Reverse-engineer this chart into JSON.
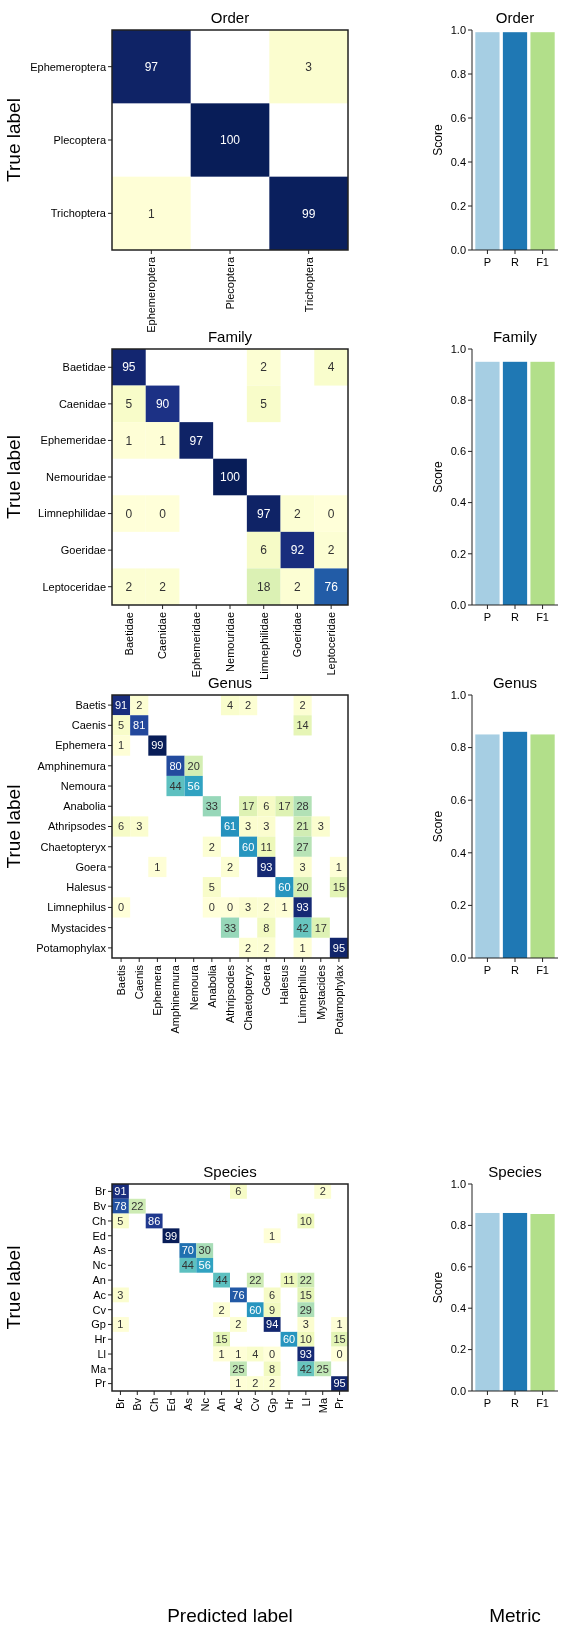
{
  "chart_data": [
    {
      "type": "heatmap",
      "title": "Order",
      "ylabel": "True label",
      "categories": [
        "Ephemeroptera",
        "Plecoptera",
        "Trichoptera"
      ],
      "y_categories": [
        "Ephemeroptera",
        "Plecoptera",
        "Trichoptera"
      ],
      "data_labels": true,
      "cells": [
        [
          97,
          null,
          3
        ],
        [
          null,
          100,
          null
        ],
        [
          1,
          null,
          99
        ]
      ]
    },
    {
      "type": "bar",
      "title": "Order",
      "ylabel": "Score",
      "categories": [
        "P",
        "R",
        "F1"
      ],
      "values": [
        0.99,
        0.99,
        0.99
      ],
      "colors": [
        "#a6cee3",
        "#1f78b4",
        "#b2df8a"
      ],
      "ylim": [
        0,
        1
      ],
      "yticks": [
        {
          "value": 0,
          "label": "0.0"
        },
        {
          "value": 0.2,
          "label": "0.2"
        },
        {
          "value": 0.4,
          "label": "0.4"
        },
        {
          "value": 0.6,
          "label": "0.6"
        },
        {
          "value": 0.8,
          "label": "0.8"
        },
        {
          "value": 1,
          "label": "1.0"
        }
      ]
    },
    {
      "type": "heatmap",
      "title": "Family",
      "ylabel": "True label",
      "categories": [
        "Baetidae",
        "Caenidae",
        "Ephemeridae",
        "Nemouridae",
        "Limnephilidae",
        "Goeridae",
        "Leptoceridae"
      ],
      "y_categories": [
        "Baetidae",
        "Caenidae",
        "Ephemeridae",
        "Nemouridae",
        "Limnephilidae",
        "Goeridae",
        "Leptoceridae"
      ],
      "data_labels": true,
      "cells": [
        [
          95,
          null,
          null,
          null,
          2,
          null,
          4
        ],
        [
          5,
          90,
          null,
          null,
          5,
          null,
          null
        ],
        [
          1,
          1,
          97,
          null,
          null,
          null,
          null
        ],
        [
          null,
          null,
          null,
          100,
          null,
          null,
          null
        ],
        [
          0,
          0,
          null,
          null,
          97,
          2,
          0
        ],
        [
          null,
          null,
          null,
          null,
          6,
          92,
          2
        ],
        [
          2,
          2,
          null,
          null,
          18,
          2,
          76
        ]
      ]
    },
    {
      "type": "bar",
      "title": "Family",
      "ylabel": "Score",
      "categories": [
        "P",
        "R",
        "F1"
      ],
      "values": [
        0.95,
        0.95,
        0.95
      ],
      "colors": [
        "#a6cee3",
        "#1f78b4",
        "#b2df8a"
      ],
      "ylim": [
        0,
        1
      ],
      "yticks": [
        {
          "value": 0,
          "label": "0.0"
        },
        {
          "value": 0.2,
          "label": "0.2"
        },
        {
          "value": 0.4,
          "label": "0.4"
        },
        {
          "value": 0.6,
          "label": "0.6"
        },
        {
          "value": 0.8,
          "label": "0.8"
        },
        {
          "value": 1,
          "label": "1.0"
        }
      ]
    },
    {
      "type": "heatmap",
      "title": "Genus",
      "ylabel": "True label",
      "categories": [
        "Baetis",
        "Caenis",
        "Ephemera",
        "Amphinemura",
        "Nemoura",
        "Anabolia",
        "Athripsodes",
        "Chaetopteryx",
        "Goera",
        "Halesus",
        "Limnephilus",
        "Mystacides",
        "Potamophylax"
      ],
      "y_categories": [
        "Baetis",
        "Caenis",
        "Ephemera",
        "Amphinemura",
        "Nemoura",
        "Anabolia",
        "Athripsodes",
        "Chaetopteryx",
        "Goera",
        "Halesus",
        "Limnephilus",
        "Mystacides",
        "Potamophylax"
      ],
      "data_labels": true,
      "cells": [
        [
          91,
          2,
          null,
          null,
          null,
          null,
          4,
          2,
          null,
          null,
          2,
          null,
          null
        ],
        [
          5,
          81,
          null,
          null,
          null,
          null,
          null,
          null,
          null,
          null,
          14,
          null,
          null
        ],
        [
          1,
          null,
          99,
          null,
          null,
          null,
          null,
          null,
          null,
          null,
          null,
          null,
          null
        ],
        [
          null,
          null,
          null,
          80,
          20,
          null,
          null,
          null,
          null,
          null,
          null,
          null,
          null
        ],
        [
          null,
          null,
          null,
          44,
          56,
          null,
          null,
          null,
          null,
          null,
          null,
          null,
          null
        ],
        [
          null,
          null,
          null,
          null,
          null,
          33,
          null,
          17,
          6,
          17,
          28,
          null,
          null
        ],
        [
          6,
          3,
          null,
          null,
          null,
          null,
          61,
          3,
          3,
          null,
          21,
          3,
          null
        ],
        [
          null,
          null,
          null,
          null,
          null,
          2,
          null,
          60,
          11,
          null,
          27,
          null,
          null
        ],
        [
          null,
          null,
          1,
          null,
          null,
          null,
          2,
          null,
          93,
          null,
          3,
          null,
          1
        ],
        [
          null,
          null,
          null,
          null,
          null,
          5,
          null,
          null,
          null,
          60,
          20,
          null,
          15
        ],
        [
          0,
          null,
          null,
          null,
          null,
          0,
          0,
          3,
          2,
          1,
          93,
          null,
          null
        ],
        [
          null,
          null,
          null,
          null,
          null,
          null,
          33,
          null,
          8,
          null,
          42,
          17,
          null
        ],
        [
          null,
          null,
          null,
          null,
          null,
          null,
          null,
          2,
          2,
          null,
          1,
          null,
          95
        ]
      ]
    },
    {
      "type": "bar",
      "title": "Genus",
      "ylabel": "Score",
      "categories": [
        "P",
        "R",
        "F1"
      ],
      "values": [
        0.85,
        0.86,
        0.85
      ],
      "colors": [
        "#a6cee3",
        "#1f78b4",
        "#b2df8a"
      ],
      "ylim": [
        0,
        1
      ],
      "yticks": [
        {
          "value": 0,
          "label": "0.0"
        },
        {
          "value": 0.2,
          "label": "0.2"
        },
        {
          "value": 0.4,
          "label": "0.4"
        },
        {
          "value": 0.6,
          "label": "0.6"
        },
        {
          "value": 0.8,
          "label": "0.8"
        },
        {
          "value": 1,
          "label": "1.0"
        }
      ]
    },
    {
      "type": "heatmap",
      "title": "Species",
      "ylabel": "True label",
      "xlabel": "Predicted label",
      "categories": [
        "Br",
        "Bv",
        "Ch",
        "Ed",
        "As",
        "Nc",
        "An",
        "Ac",
        "Cv",
        "Gp",
        "Hr",
        "Ll",
        "Ma",
        "Pr"
      ],
      "y_categories": [
        "Br",
        "Bv",
        "Ch",
        "Ed",
        "As",
        "Nc",
        "An",
        "Ac",
        "Cv",
        "Gp",
        "Hr",
        "Ll",
        "Ma",
        "Pr"
      ],
      "data_labels": true,
      "cells": [
        [
          91,
          null,
          null,
          null,
          null,
          null,
          null,
          6,
          null,
          null,
          null,
          null,
          2,
          null
        ],
        [
          78,
          22,
          null,
          null,
          null,
          null,
          null,
          null,
          null,
          null,
          null,
          null,
          null,
          null
        ],
        [
          5,
          null,
          86,
          null,
          null,
          null,
          null,
          null,
          null,
          null,
          null,
          10,
          null,
          null
        ],
        [
          null,
          null,
          null,
          99,
          null,
          null,
          null,
          null,
          null,
          1,
          null,
          null,
          null,
          null
        ],
        [
          null,
          null,
          null,
          null,
          70,
          30,
          null,
          null,
          null,
          null,
          null,
          null,
          null,
          null
        ],
        [
          null,
          null,
          null,
          null,
          44,
          56,
          null,
          null,
          null,
          null,
          null,
          null,
          null,
          null
        ],
        [
          null,
          null,
          null,
          null,
          null,
          null,
          44,
          null,
          22,
          null,
          11,
          22,
          null,
          null
        ],
        [
          3,
          null,
          null,
          null,
          null,
          null,
          null,
          76,
          null,
          6,
          null,
          15,
          null,
          null
        ],
        [
          null,
          null,
          null,
          null,
          null,
          null,
          2,
          null,
          60,
          9,
          null,
          29,
          null,
          null
        ],
        [
          1,
          null,
          null,
          null,
          null,
          null,
          null,
          2,
          null,
          94,
          null,
          3,
          null,
          1
        ],
        [
          null,
          null,
          null,
          null,
          null,
          null,
          15,
          null,
          null,
          null,
          60,
          10,
          null,
          15
        ],
        [
          null,
          null,
          null,
          null,
          null,
          null,
          1,
          1,
          4,
          0,
          null,
          93,
          null,
          0
        ],
        [
          null,
          null,
          null,
          null,
          null,
          null,
          null,
          25,
          null,
          8,
          null,
          42,
          25,
          null
        ],
        [
          null,
          null,
          null,
          null,
          null,
          null,
          null,
          1,
          2,
          2,
          null,
          null,
          null,
          95
        ]
      ]
    },
    {
      "type": "bar",
      "title": "Species",
      "ylabel": "Score",
      "xlabel": "Metric",
      "categories": [
        "P",
        "R",
        "F1"
      ],
      "values": [
        0.86,
        0.86,
        0.855
      ],
      "colors": [
        "#a6cee3",
        "#1f78b4",
        "#b2df8a"
      ],
      "ylim": [
        0,
        1
      ],
      "yticks": [
        {
          "value": 0,
          "label": "0.0"
        },
        {
          "value": 0.2,
          "label": "0.2"
        },
        {
          "value": 0.4,
          "label": "0.4"
        },
        {
          "value": 0.6,
          "label": "0.6"
        },
        {
          "value": 0.8,
          "label": "0.8"
        },
        {
          "value": 1,
          "label": "1.0"
        }
      ]
    }
  ]
}
